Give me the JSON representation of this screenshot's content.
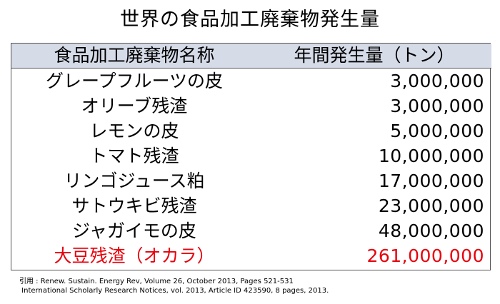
{
  "title": "世界の食品加工廃棄物発生量",
  "table": {
    "headers": {
      "name": "食品加工廃棄物名称",
      "value": "年間発生量（トン）"
    },
    "rows": [
      {
        "name": "グレープフルーツの皮",
        "value": "3,000,000"
      },
      {
        "name": "オリーブ残渣",
        "value": "3,000,000"
      },
      {
        "name": "レモンの皮",
        "value": "5,000,000"
      },
      {
        "name": "トマト残渣",
        "value": "10,000,000"
      },
      {
        "name": "リンゴジュース粕",
        "value": "17,000,000"
      },
      {
        "name": "サトウキビ残渣",
        "value": "23,000,000"
      },
      {
        "name": "ジャガイモの皮",
        "value": "48,000,000"
      },
      {
        "name": "大豆残渣（オカラ）",
        "value": "261,000,000"
      }
    ],
    "highlight_color": "#e8000b",
    "header_background": "#d6dbe8"
  },
  "citation": {
    "line1": "引用 : Renew. Sustain. Energy Rev, Volume 26, October 2013, Pages 521-531",
    "line2": " International Scholarly Research Notices, vol. 2013, Article ID 423590, 8 pages, 2013."
  }
}
